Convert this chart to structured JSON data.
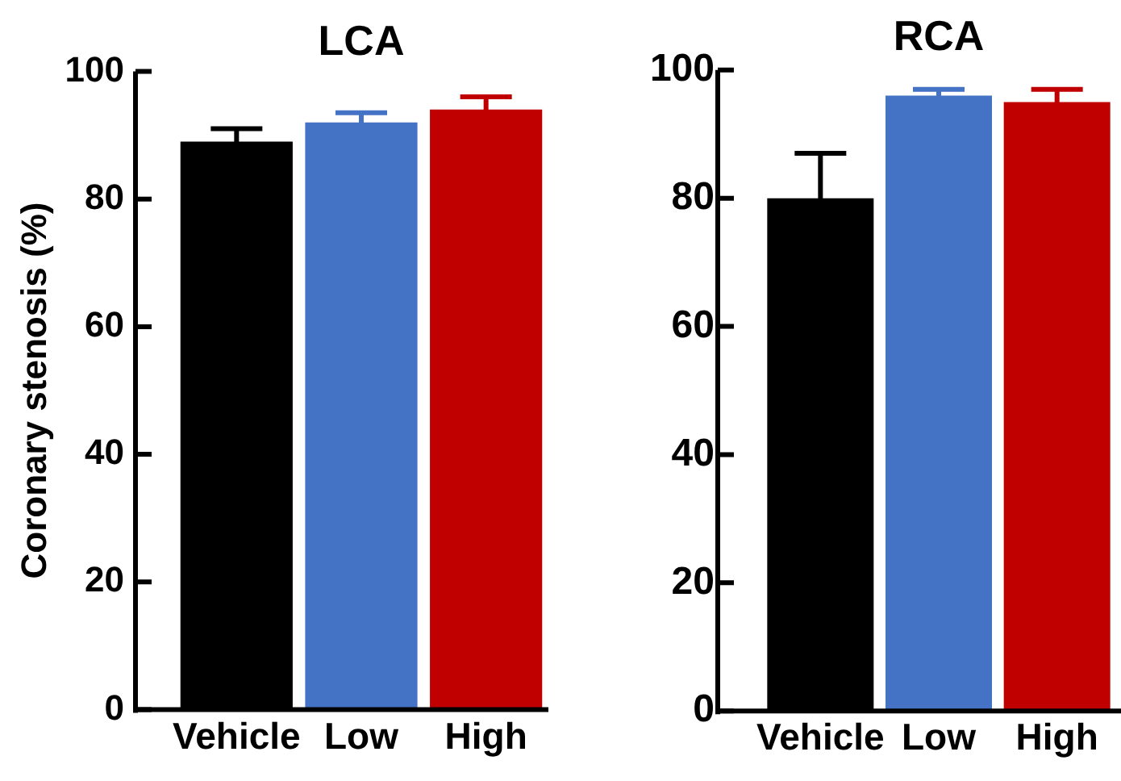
{
  "chart_data": [
    {
      "type": "bar",
      "title": "LCA",
      "ylabel": "Coronary stenosis (%)",
      "categories": [
        "Vehicle",
        "Low",
        "High"
      ],
      "values": [
        89,
        92,
        94
      ],
      "colors": [
        "#000000",
        "#4472c4",
        "#c00000"
      ],
      "errors": [
        2,
        1.5,
        2
      ],
      "ylim": [
        0,
        100
      ],
      "yticks": [
        0,
        20,
        40,
        60,
        80,
        100
      ]
    },
    {
      "type": "bar",
      "title": "RCA",
      "categories": [
        "Vehicle",
        "Low",
        "High"
      ],
      "values": [
        80,
        96,
        95
      ],
      "colors": [
        "#000000",
        "#4472c4",
        "#c00000"
      ],
      "errors": [
        7,
        1,
        2
      ],
      "ylim": [
        0,
        100
      ],
      "yticks": [
        0,
        20,
        40,
        60,
        80,
        100
      ]
    }
  ]
}
